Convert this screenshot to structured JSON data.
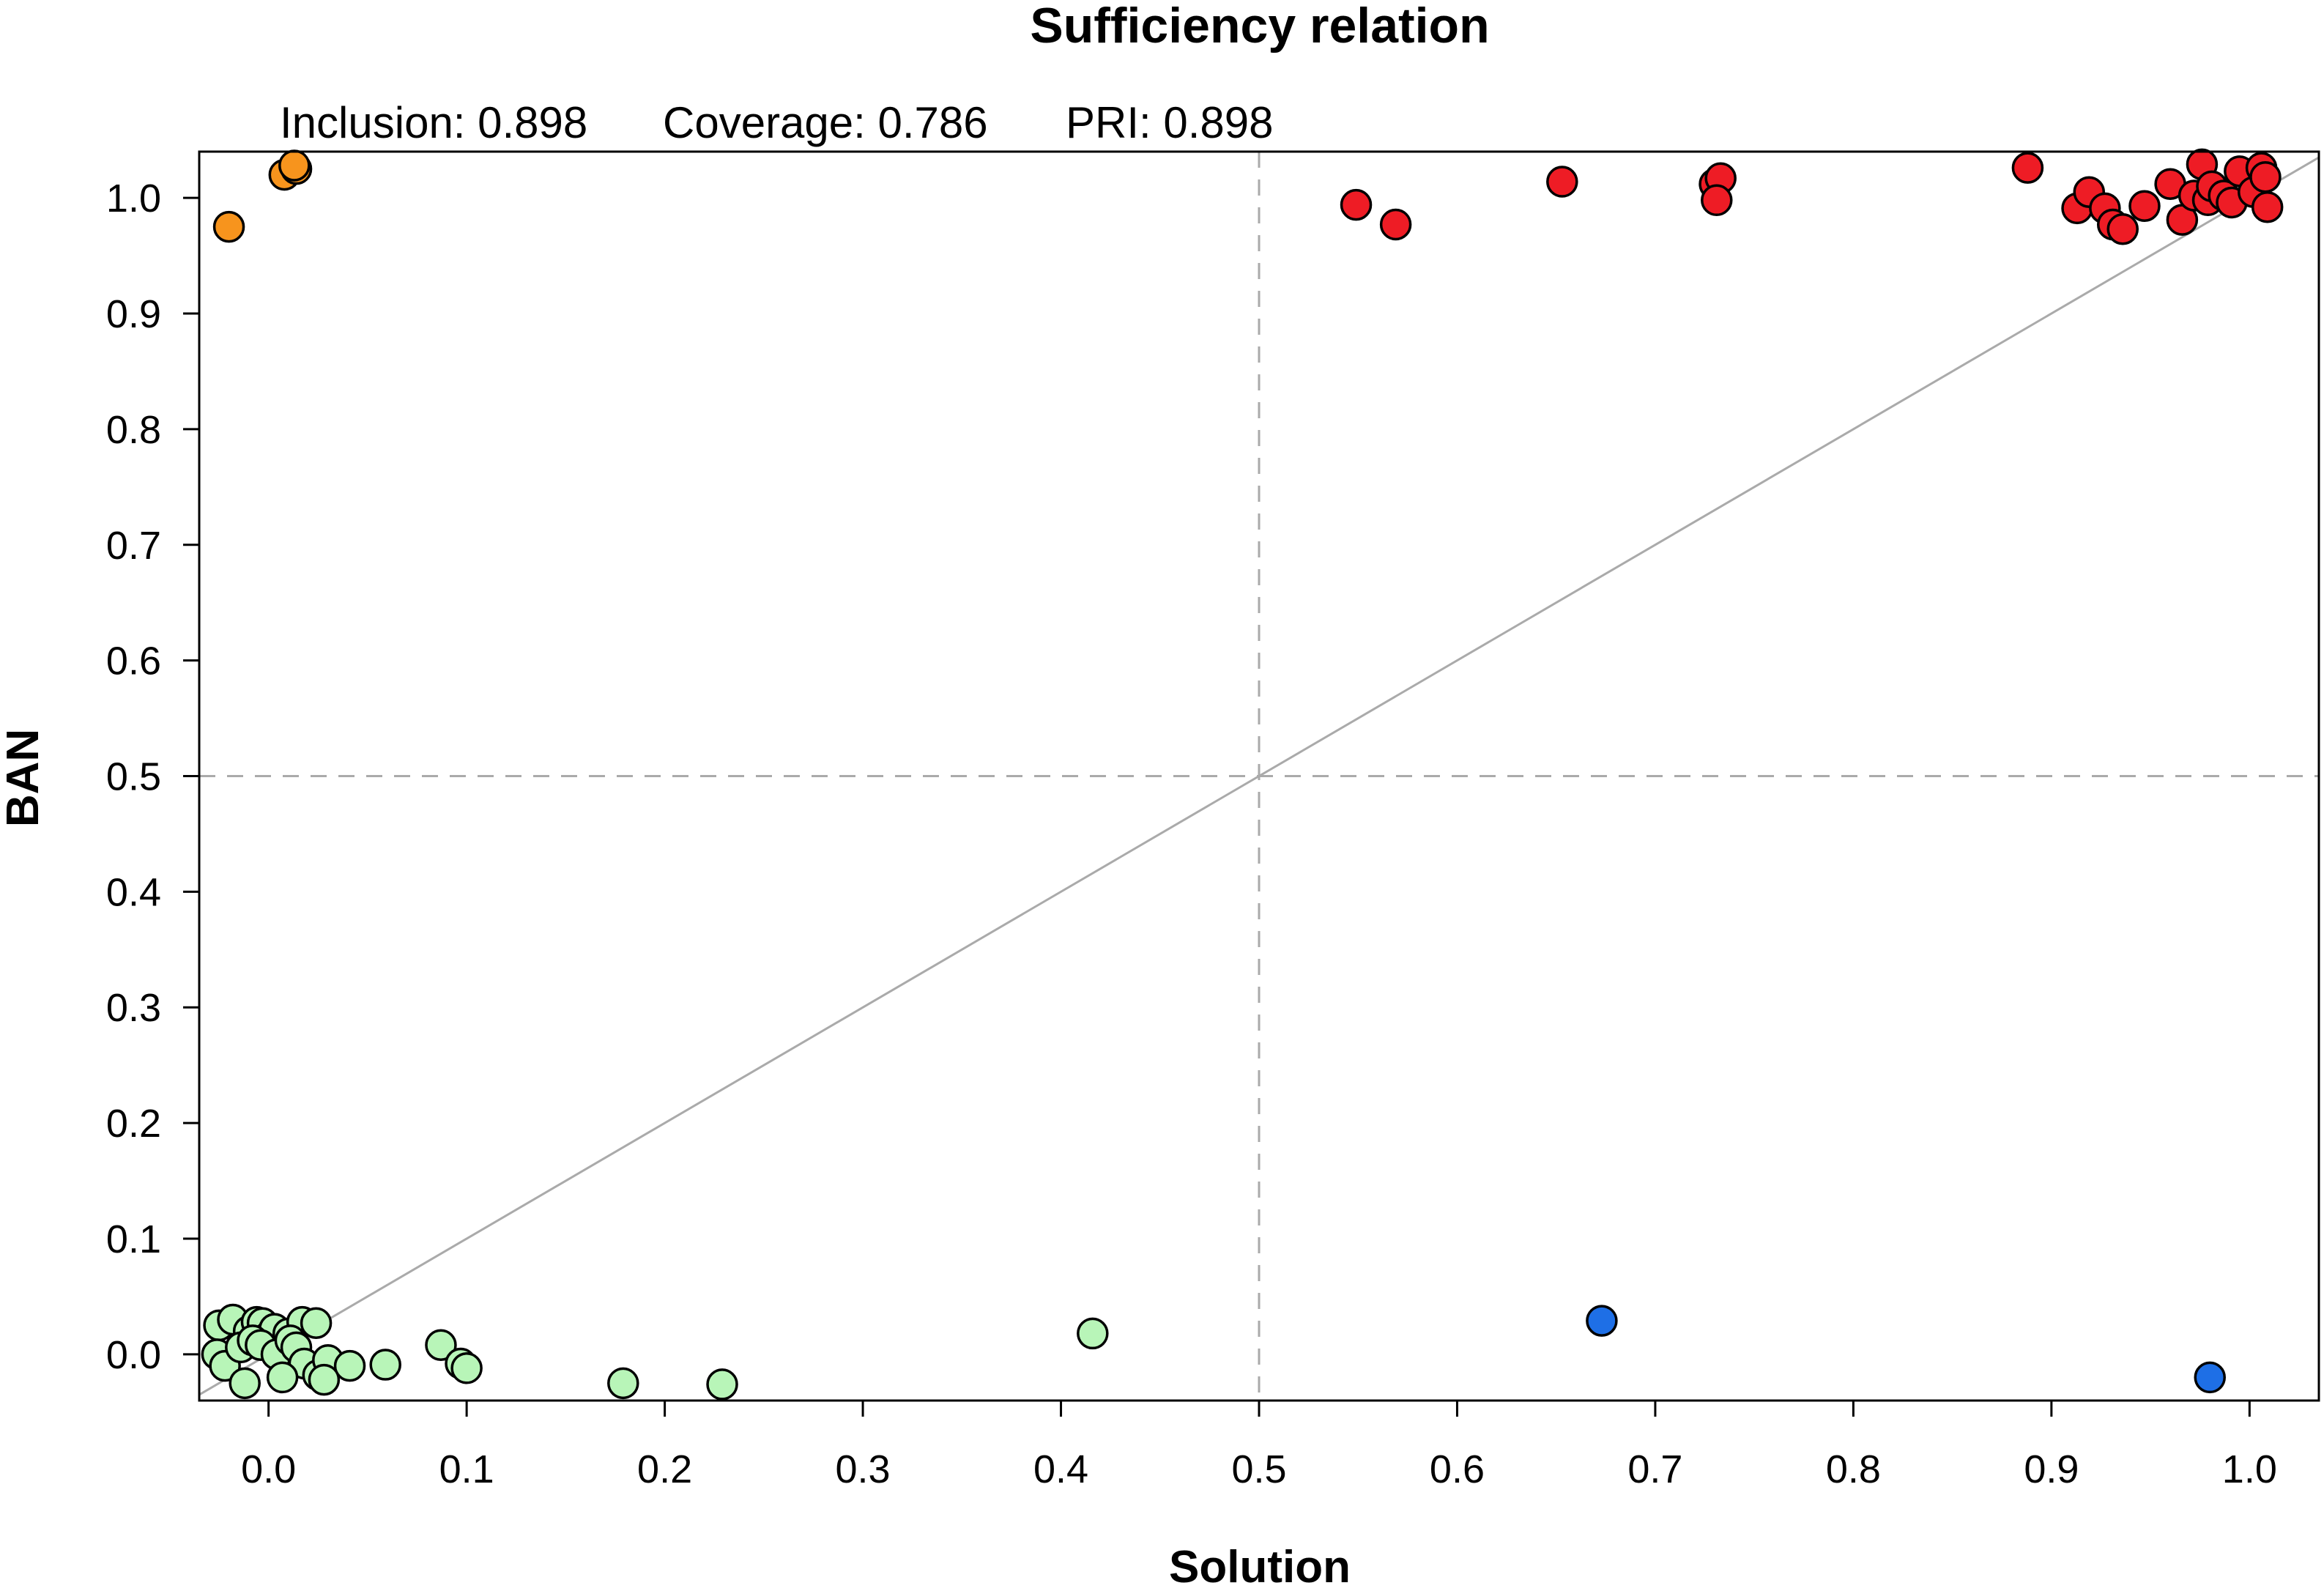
{
  "chart_data": {
    "type": "scatter",
    "title": "Sufficiency relation",
    "stats": {
      "inclusion": "Inclusion: 0.898",
      "coverage": "Coverage: 0.786",
      "pri": "PRI: 0.898"
    },
    "xlabel": "Solution",
    "ylabel": "BAN",
    "xlim": [
      -0.035,
      1.035
    ],
    "ylim": [
      -0.04,
      1.04
    ],
    "xticks": [
      "0.0",
      "0.1",
      "0.2",
      "0.3",
      "0.4",
      "0.5",
      "0.6",
      "0.7",
      "0.8",
      "0.9",
      "1.0"
    ],
    "yticks": [
      "0.0",
      "0.1",
      "0.2",
      "0.3",
      "0.4",
      "0.5",
      "0.6",
      "0.7",
      "0.8",
      "0.9",
      "1.0"
    ],
    "reference_lines": {
      "diagonal": true,
      "vertical_dashed_x": 0.5,
      "horizontal_dashed_y": 0.5
    },
    "colors": {
      "red": "#ee1c25",
      "orange": "#f7941d",
      "lightgreen": "#b8f5b8",
      "blue": "#1e6fe6",
      "refline": "#aaaaaa",
      "outline": "#000000"
    },
    "series": [
      {
        "name": "red",
        "color": "#ee1c25",
        "points": [
          [
            0.549,
            0.994
          ],
          [
            0.569,
            0.977
          ],
          [
            0.653,
            1.014
          ],
          [
            0.73,
            1.012
          ],
          [
            0.733,
            1.017
          ],
          [
            0.731,
            0.998
          ],
          [
            0.888,
            1.026
          ],
          [
            0.913,
            0.991
          ],
          [
            0.919,
            1.005
          ],
          [
            0.927,
            0.991
          ],
          [
            0.931,
            0.977
          ],
          [
            0.936,
            0.973
          ],
          [
            0.947,
            0.993
          ],
          [
            0.96,
            1.012
          ],
          [
            0.966,
            0.981
          ],
          [
            0.972,
            1.002
          ],
          [
            0.976,
            1.029
          ],
          [
            0.979,
            0.998
          ],
          [
            0.981,
            1.01
          ],
          [
            0.987,
            1.002
          ],
          [
            0.991,
            0.996
          ],
          [
            0.995,
            1.023
          ],
          [
            1.002,
            1.005
          ],
          [
            1.006,
            1.026
          ],
          [
            1.008,
            1.018
          ],
          [
            1.009,
            0.992
          ]
        ]
      },
      {
        "name": "orange",
        "color": "#f7941d",
        "points": [
          [
            -0.02,
            0.975
          ],
          [
            0.008,
            1.02
          ],
          [
            0.014,
            1.025
          ],
          [
            0.013,
            1.028
          ]
        ]
      },
      {
        "name": "lightgreen",
        "color": "#b8f5b8",
        "points": [
          [
            -0.025,
            0.025
          ],
          [
            -0.018,
            0.03
          ],
          [
            -0.01,
            0.02
          ],
          [
            -0.006,
            0.028
          ],
          [
            -0.003,
            0.027
          ],
          [
            0.0,
            0.015
          ],
          [
            0.003,
            0.022
          ],
          [
            0.01,
            0.018
          ],
          [
            0.017,
            0.028
          ],
          [
            0.024,
            0.027
          ],
          [
            -0.026,
            0.0
          ],
          [
            -0.022,
            -0.01
          ],
          [
            -0.014,
            0.006
          ],
          [
            -0.008,
            0.012
          ],
          [
            -0.004,
            0.008
          ],
          [
            0.004,
            0.0
          ],
          [
            0.011,
            0.012
          ],
          [
            0.014,
            0.006
          ],
          [
            0.018,
            -0.008
          ],
          [
            0.025,
            -0.018
          ],
          [
            0.03,
            -0.005
          ],
          [
            0.041,
            -0.01
          ],
          [
            -0.012,
            -0.025
          ],
          [
            0.007,
            -0.02
          ],
          [
            0.028,
            -0.022
          ],
          [
            0.059,
            -0.009
          ],
          [
            0.087,
            0.008
          ],
          [
            0.097,
            -0.008
          ],
          [
            0.1,
            -0.012
          ],
          [
            0.179,
            -0.025
          ],
          [
            0.229,
            -0.026
          ],
          [
            0.416,
            0.018
          ]
        ]
      },
      {
        "name": "blue",
        "color": "#1e6fe6",
        "points": [
          [
            0.673,
            0.029
          ],
          [
            0.98,
            -0.02
          ]
        ]
      }
    ]
  }
}
